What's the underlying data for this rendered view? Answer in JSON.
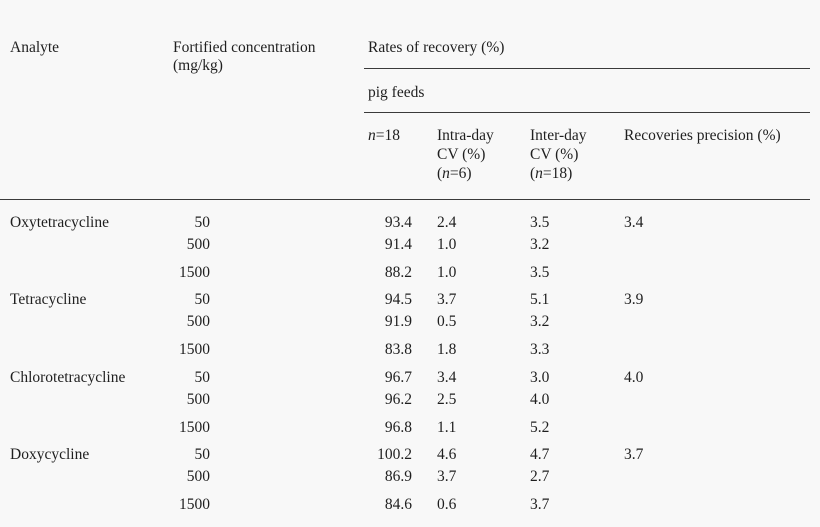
{
  "headers": {
    "analyte": "Analyte",
    "fortified_line1": "Fortified concentration",
    "fortified_line2": "(mg/kg)",
    "rates": "Rates of recovery (%)",
    "pig_feeds": "pig feeds",
    "n_prefix": "n",
    "n_suffix": "=18",
    "intra_line1": "Intra-day",
    "intra_line2": "CV (%)",
    "intra_line3_open": "(",
    "intra_line3_n": "n",
    "intra_line3_rest": "=6)",
    "inter_line1": "Inter-day",
    "inter_line2": "CV (%)",
    "inter_line3_open": "(",
    "inter_line3_n": "n",
    "inter_line3_rest": "=18)",
    "precision": "Recoveries precision (%)"
  },
  "rows": [
    {
      "analyte": "Oxytetracycline",
      "conc": "50",
      "n18": "93.4",
      "intra": "2.4",
      "inter": "3.5",
      "precision": "3.4"
    },
    {
      "analyte": "",
      "conc": "500",
      "n18": "91.4",
      "intra": "1.0",
      "inter": "3.2",
      "precision": ""
    },
    {
      "analyte": "",
      "conc": "1500",
      "n18": "88.2",
      "intra": "1.0",
      "inter": "3.5",
      "precision": ""
    },
    {
      "analyte": "Tetracycline",
      "conc": "50",
      "n18": "94.5",
      "intra": "3.7",
      "inter": "5.1",
      "precision": "3.9"
    },
    {
      "analyte": "",
      "conc": "500",
      "n18": "91.9",
      "intra": "0.5",
      "inter": "3.2",
      "precision": ""
    },
    {
      "analyte": "",
      "conc": "1500",
      "n18": "83.8",
      "intra": "1.8",
      "inter": "3.3",
      "precision": ""
    },
    {
      "analyte": "Chlorotetracycline",
      "conc": "50",
      "n18": "96.7",
      "intra": "3.4",
      "inter": "3.0",
      "precision": "4.0"
    },
    {
      "analyte": "",
      "conc": "500",
      "n18": "96.2",
      "intra": "2.5",
      "inter": "4.0",
      "precision": ""
    },
    {
      "analyte": "",
      "conc": "1500",
      "n18": "96.8",
      "intra": "1.1",
      "inter": "5.2",
      "precision": ""
    },
    {
      "analyte": "Doxycycline",
      "conc": "50",
      "n18": "100.2",
      "intra": "4.6",
      "inter": "4.7",
      "precision": "3.7"
    },
    {
      "analyte": "",
      "conc": "500",
      "n18": "86.9",
      "intra": "3.7",
      "inter": "2.7",
      "precision": ""
    },
    {
      "analyte": "",
      "conc": "1500",
      "n18": "84.6",
      "intra": "0.6",
      "inter": "3.7",
      "precision": ""
    }
  ]
}
